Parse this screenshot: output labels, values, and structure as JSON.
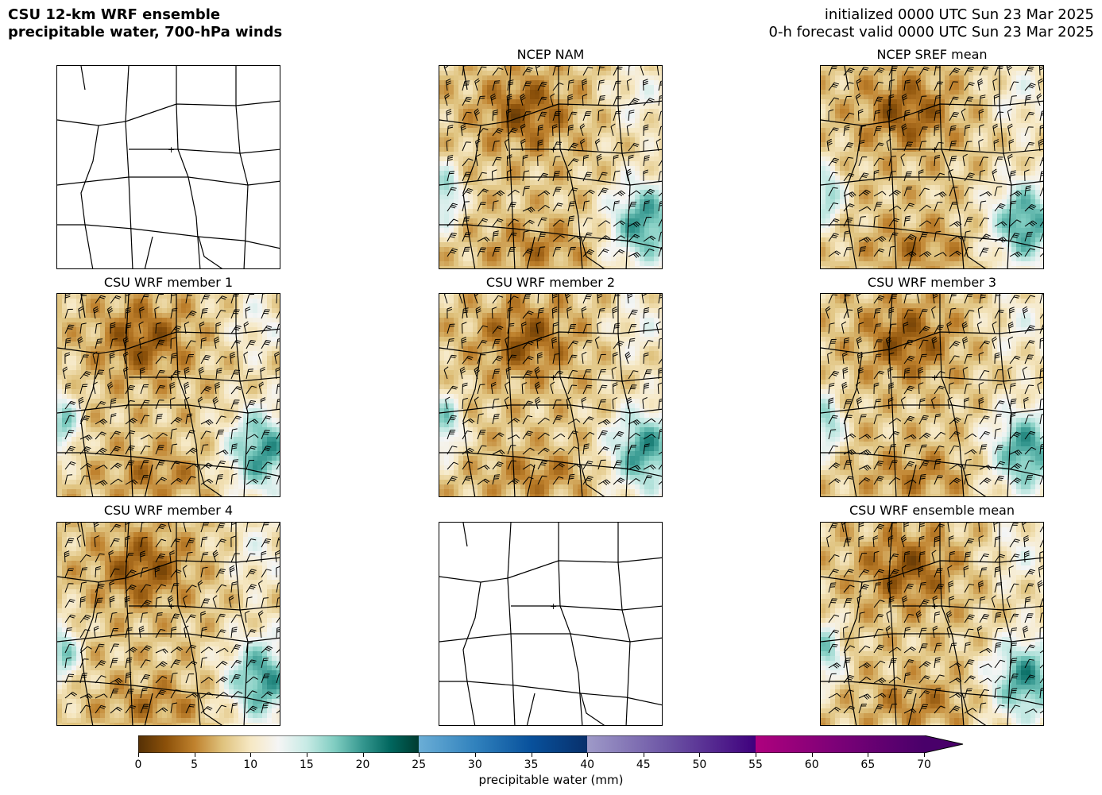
{
  "header": {
    "title_line1": "CSU 12-km WRF ensemble",
    "title_line2": "precipitable water, 700-hPa winds",
    "init_line": "initialized 0000 UTC Sun 23 Mar 2025",
    "valid_line": "0-h forecast valid 0000 UTC Sun 23 Mar 2025"
  },
  "panels": [
    {
      "title": "",
      "kind": "blank"
    },
    {
      "title": "NCEP NAM",
      "kind": "field"
    },
    {
      "title": "NCEP SREF mean",
      "kind": "field"
    },
    {
      "title": "CSU WRF member 1",
      "kind": "field"
    },
    {
      "title": "CSU WRF member 2",
      "kind": "field"
    },
    {
      "title": "CSU WRF member 3",
      "kind": "field"
    },
    {
      "title": "CSU WRF member 4",
      "kind": "field"
    },
    {
      "title": "",
      "kind": "blank"
    },
    {
      "title": "CSU WRF ensemble mean",
      "kind": "field"
    }
  ],
  "colorbar": {
    "label": "precipitable water (mm)",
    "ticks": [
      "0",
      "5",
      "10",
      "15",
      "20",
      "25",
      "30",
      "35",
      "40",
      "45",
      "50",
      "55",
      "60",
      "65",
      "70"
    ],
    "min": 0,
    "max": 70,
    "segments": [
      {
        "from": 0,
        "to": 25,
        "colors": [
          "#543005",
          "#8c510a",
          "#bf812d",
          "#dfc27d",
          "#f6e8c3",
          "#f5f5f5",
          "#c7eae5",
          "#80cdc1",
          "#35978f",
          "#01665e",
          "#003c30"
        ]
      },
      {
        "from": 25,
        "to": 40,
        "colors": [
          "#6baed6",
          "#3182bd",
          "#08519c",
          "#08306b"
        ]
      },
      {
        "from": 40,
        "to": 55,
        "colors": [
          "#9e9ac8",
          "#6a51a3",
          "#3f007d"
        ]
      },
      {
        "from": 55,
        "to": 70,
        "colors": [
          "#ae017e",
          "#7a0177",
          "#49006a"
        ]
      }
    ]
  }
}
